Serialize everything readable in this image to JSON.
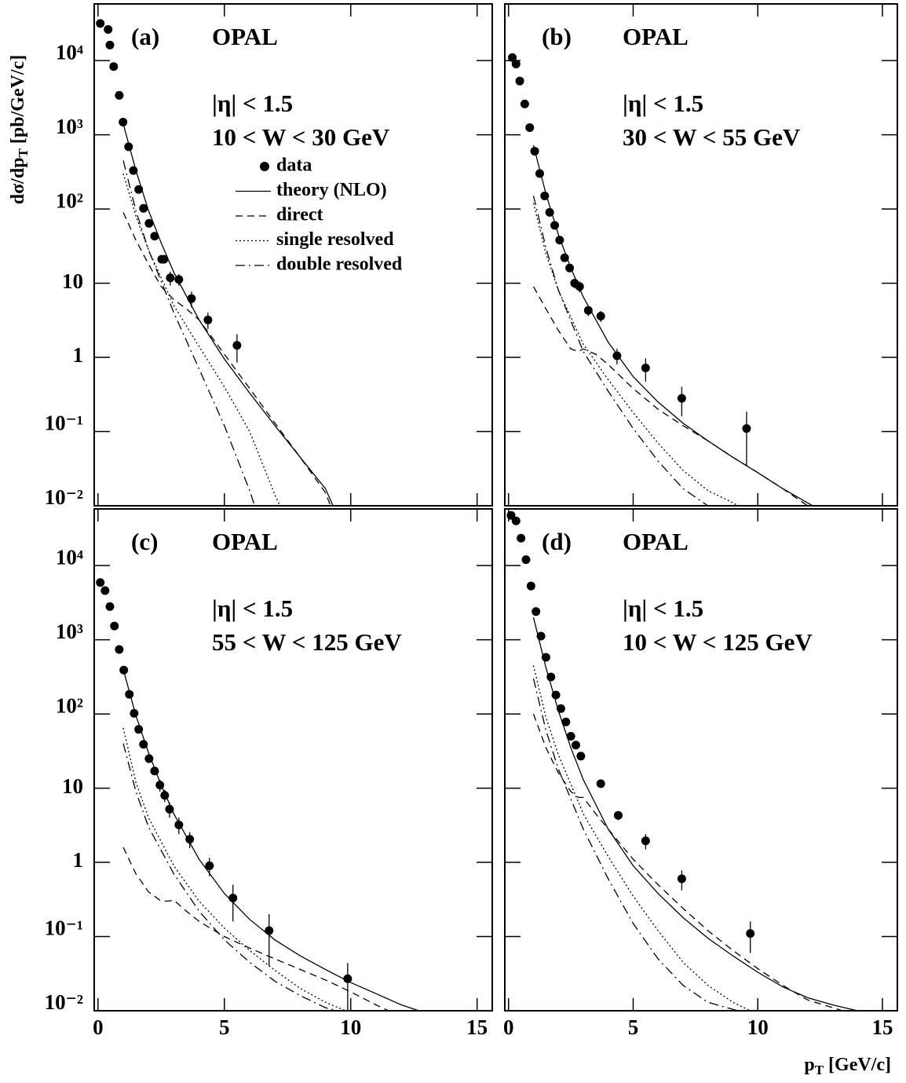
{
  "chart_data": [
    {
      "type": "line",
      "label": "(a)",
      "title": "OPAL",
      "annotations": [
        "|η| < 1.5",
        "10 < W < 30 GeV"
      ],
      "ylabel": [
        "dσ/dp",
        "T",
        "[pb/GeV/c]"
      ],
      "xlim": [
        -0.15,
        15.6
      ],
      "ylim": [
        0.01,
        58000
      ],
      "log_y": true,
      "xticks": [
        0,
        5,
        10,
        15
      ],
      "show_xtick_labels": false,
      "show_ytick_labels": true,
      "yticks": [
        {
          "value": 0.01,
          "label": "10⁻²"
        },
        {
          "value": 0.1,
          "label": "10⁻¹"
        },
        1,
        10,
        {
          "value": 100,
          "label": "10²"
        },
        {
          "value": 1000,
          "label": "10³"
        },
        {
          "value": 10000,
          "label": "10⁴"
        }
      ],
      "legend": true,
      "series": [
        {
          "name": "data",
          "style": "points",
          "color": "#000000",
          "x": [
            0.09,
            0.4,
            0.47,
            0.62,
            0.84,
            0.99,
            1.21,
            1.4,
            1.61,
            1.8,
            2.02,
            2.24,
            2.52,
            2.61,
            2.86,
            3.2,
            3.7,
            4.35,
            5.5
          ],
          "values": [
            31600,
            26300,
            16200,
            8300,
            3400,
            1480,
            690,
            330,
            183,
            102,
            64,
            43,
            21,
            21,
            11.8,
            11.2,
            6.2,
            3.2,
            1.45
          ],
          "errors": [
            0,
            0,
            0,
            0,
            0,
            0,
            0,
            0,
            0,
            0,
            0,
            0,
            2.5,
            2.5,
            2.5,
            2,
            1.5,
            0.8,
            0.6
          ]
        },
        {
          "name": "theory (NLO)",
          "style": "solid",
          "color": "#000000",
          "x": [
            1,
            1.5,
            2,
            2.5,
            3,
            4,
            5,
            6,
            7,
            8,
            9,
            9.3
          ],
          "values": [
            1400,
            330,
            95,
            35,
            14,
            3.2,
            0.95,
            0.33,
            0.12,
            0.045,
            0.017,
            0.01
          ]
        },
        {
          "name": "direct",
          "style": "dashed",
          "color": "#000000",
          "x": [
            1,
            1.5,
            2,
            2.5,
            3,
            3.5,
            4,
            5,
            6,
            7,
            8,
            9,
            9.2
          ],
          "values": [
            90,
            38,
            18,
            9,
            6,
            4.5,
            3.2,
            1.1,
            0.38,
            0.13,
            0.045,
            0.015,
            0.01
          ]
        },
        {
          "name": "single resolved",
          "style": "dotted",
          "color": "#000000",
          "x": [
            1,
            1.5,
            2,
            3,
            4,
            5,
            6,
            7,
            7.2
          ],
          "values": [
            300,
            80,
            28,
            5,
            1.4,
            0.4,
            0.1,
            0.014,
            0.01
          ]
        },
        {
          "name": "double resolved",
          "style": "dashdot",
          "color": "#000000",
          "x": [
            1,
            1.5,
            2,
            3,
            4,
            5,
            6,
            6.2
          ],
          "values": [
            450,
            95,
            28,
            4,
            0.7,
            0.12,
            0.016,
            0.01
          ]
        }
      ]
    },
    {
      "type": "line",
      "label": "(b)",
      "title": "OPAL",
      "annotations": [
        "|η| < 1.5",
        "30 < W < 55 GeV"
      ],
      "xlim": [
        -0.15,
        15.6
      ],
      "ylim": [
        0.01,
        58000
      ],
      "log_y": true,
      "xticks": [
        0,
        5,
        10,
        15
      ],
      "show_xtick_labels": false,
      "show_ytick_labels": false,
      "yticks": [
        0.01,
        0.1,
        1,
        10,
        100,
        1000,
        10000
      ],
      "series": [
        {
          "style": "points",
          "color": "#000000",
          "x": [
            0.15,
            0.3,
            0.45,
            0.65,
            0.85,
            1.05,
            1.25,
            1.45,
            1.65,
            1.85,
            2.05,
            2.25,
            2.45,
            2.65,
            2.85,
            3.2,
            3.7,
            4.35,
            5.5,
            6.95,
            9.55
          ],
          "values": [
            11000,
            9000,
            5300,
            2600,
            1250,
            600,
            300,
            150,
            90,
            60,
            38,
            22,
            16,
            10,
            9,
            4.3,
            3.6,
            1.05,
            0.72,
            0.28,
            0.11
          ],
          "errors": [
            0,
            0,
            0,
            0,
            0,
            0,
            0,
            0,
            0,
            0,
            0,
            0,
            2,
            1.5,
            1.5,
            0.7,
            0.6,
            0.25,
            0.25,
            0.12,
            0.075
          ]
        },
        {
          "style": "solid",
          "color": "#000000",
          "x": [
            1,
            1.5,
            2,
            2.5,
            3,
            4,
            5,
            6,
            7,
            8,
            9,
            10,
            11,
            12.2
          ],
          "values": [
            720,
            160,
            45,
            16,
            6.5,
            1.6,
            0.55,
            0.25,
            0.13,
            0.075,
            0.045,
            0.028,
            0.017,
            0.01
          ]
        },
        {
          "style": "dashed",
          "color": "#000000",
          "x": [
            1,
            1.5,
            2,
            2.5,
            2.8,
            3,
            3.5,
            4,
            5,
            6,
            7,
            8,
            9,
            10,
            11,
            12
          ],
          "values": [
            9,
            4.5,
            2.3,
            1.3,
            1.2,
            1.3,
            1.1,
            0.8,
            0.38,
            0.2,
            0.12,
            0.075,
            0.045,
            0.028,
            0.017,
            0.01
          ]
        },
        {
          "style": "dotted",
          "color": "#000000",
          "x": [
            1,
            1.5,
            2,
            3,
            4,
            5,
            6,
            7,
            8,
            9,
            9.2
          ],
          "values": [
            120,
            25,
            8,
            1.5,
            0.5,
            0.18,
            0.07,
            0.03,
            0.016,
            0.011,
            0.01
          ]
        },
        {
          "style": "dashdot",
          "color": "#000000",
          "x": [
            1,
            1.5,
            2,
            3,
            4,
            5,
            6,
            7,
            8
          ],
          "values": [
            150,
            30,
            8,
            1.2,
            0.35,
            0.11,
            0.04,
            0.017,
            0.01
          ]
        }
      ]
    },
    {
      "type": "line",
      "label": "(c)",
      "title": "OPAL",
      "annotations": [
        "|η| < 1.5",
        "55 < W < 125 GeV"
      ],
      "xlim": [
        -0.15,
        15.6
      ],
      "ylim": [
        0.01,
        58000
      ],
      "log_y": true,
      "xticks": [
        0,
        5,
        10,
        15
      ],
      "show_xtick_labels": true,
      "show_ytick_labels": true,
      "yticks": [
        {
          "value": 0.01,
          "label": "10⁻²"
        },
        {
          "value": 0.1,
          "label": "10⁻¹"
        },
        1,
        10,
        {
          "value": 100,
          "label": "10²"
        },
        {
          "value": 1000,
          "label": "10³"
        },
        {
          "value": 10000,
          "label": "10⁴"
        }
      ],
      "series": [
        {
          "style": "points",
          "color": "#000000",
          "x": [
            0.09,
            0.28,
            0.47,
            0.65,
            0.84,
            1.02,
            1.24,
            1.43,
            1.61,
            1.8,
            2.02,
            2.24,
            2.45,
            2.64,
            2.83,
            3.2,
            3.63,
            4.41,
            5.34,
            6.77,
            9.88
          ],
          "values": [
            5900,
            4600,
            2800,
            1530,
            740,
            390,
            184,
            102,
            62,
            39,
            25,
            17,
            11,
            8,
            5.2,
            3.2,
            2.05,
            0.9,
            0.33,
            0.12,
            0.027
          ],
          "errors": [
            0,
            0,
            0,
            0,
            0,
            50,
            20,
            10,
            6,
            4,
            3,
            2,
            2,
            1.5,
            1.2,
            0.8,
            0.5,
            0.25,
            0.17,
            0.08,
            0.017
          ]
        },
        {
          "style": "solid",
          "color": "#000000",
          "x": [
            1,
            1.5,
            2,
            2.5,
            3,
            4,
            5,
            6,
            7,
            8,
            9,
            10,
            11,
            12,
            12.7
          ],
          "values": [
            400,
            95,
            30,
            11,
            4.5,
            1.1,
            0.38,
            0.17,
            0.09,
            0.055,
            0.036,
            0.024,
            0.017,
            0.012,
            0.01
          ]
        },
        {
          "style": "dashed",
          "color": "#000000",
          "x": [
            1,
            1.5,
            2,
            2.5,
            2.8,
            3,
            3.5,
            4,
            5,
            6,
            7,
            8,
            9,
            10,
            11,
            11.5
          ],
          "values": [
            1.6,
            0.7,
            0.4,
            0.3,
            0.3,
            0.31,
            0.22,
            0.16,
            0.1,
            0.07,
            0.05,
            0.036,
            0.026,
            0.018,
            0.012,
            0.01
          ]
        },
        {
          "style": "dotted",
          "color": "#000000",
          "x": [
            1,
            1.5,
            2,
            3,
            4,
            5,
            6,
            7,
            8,
            9,
            9.8
          ],
          "values": [
            65,
            12,
            4,
            0.9,
            0.3,
            0.13,
            0.065,
            0.035,
            0.02,
            0.013,
            0.01
          ]
        },
        {
          "style": "dashdot",
          "color": "#000000",
          "x": [
            1,
            1.5,
            2,
            3,
            4,
            5,
            6,
            7,
            8,
            9,
            9.5
          ],
          "values": [
            40,
            9,
            3,
            0.7,
            0.22,
            0.09,
            0.045,
            0.025,
            0.016,
            0.011,
            0.01
          ]
        }
      ]
    },
    {
      "type": "line",
      "label": "(d)",
      "title": "OPAL",
      "annotations": [
        "|η| < 1.5",
        "10 < W < 125 GeV"
      ],
      "xlabel": [
        "p",
        "T",
        "[GeV/c]"
      ],
      "xlim": [
        -0.15,
        15.6
      ],
      "ylim": [
        0.01,
        58000
      ],
      "log_y": true,
      "xticks": [
        0,
        5,
        10,
        15
      ],
      "show_xtick_labels": true,
      "show_ytick_labels": false,
      "yticks": [
        0.01,
        0.1,
        1,
        10,
        100,
        1000,
        10000
      ],
      "series": [
        {
          "style": "points",
          "color": "#000000",
          "x": [
            0.1,
            0.3,
            0.5,
            0.7,
            0.9,
            1.1,
            1.3,
            1.5,
            1.7,
            1.9,
            2.1,
            2.3,
            2.5,
            2.7,
            2.9,
            3.7,
            4.4,
            5.5,
            6.95,
            9.7
          ],
          "values": [
            47500,
            40000,
            23400,
            12000,
            5300,
            2400,
            1120,
            580,
            315,
            180,
            118,
            78,
            50,
            38,
            27,
            11.5,
            4.3,
            1.95,
            0.6,
            0.11
          ],
          "errors": [
            0,
            0,
            0,
            0,
            0,
            0,
            0,
            0,
            0,
            0,
            0,
            0,
            0,
            0,
            0,
            1,
            0.6,
            0.45,
            0.18,
            0.05
          ]
        },
        {
          "style": "solid",
          "color": "#000000",
          "x": [
            1,
            1.5,
            2,
            2.5,
            3,
            4,
            5,
            6,
            7,
            8,
            9,
            10,
            11,
            12,
            13,
            14
          ],
          "values": [
            2000,
            420,
            110,
            35,
            13,
            2.8,
            0.9,
            0.38,
            0.18,
            0.095,
            0.055,
            0.033,
            0.021,
            0.015,
            0.012,
            0.01
          ]
        },
        {
          "style": "dashed",
          "color": "#000000",
          "x": [
            1,
            1.5,
            2,
            2.5,
            2.8,
            3,
            3.5,
            4,
            5,
            6,
            7,
            8,
            9,
            10,
            11,
            12,
            13.4
          ],
          "values": [
            100,
            35,
            16,
            9,
            7.5,
            7.5,
            4.5,
            2.8,
            1.1,
            0.5,
            0.24,
            0.12,
            0.065,
            0.037,
            0.022,
            0.014,
            0.01
          ]
        },
        {
          "style": "dotted",
          "color": "#000000",
          "x": [
            1,
            1.5,
            2,
            3,
            4,
            5,
            6,
            7,
            8,
            9,
            9.7
          ],
          "values": [
            450,
            90,
            28,
            4.5,
            1.2,
            0.35,
            0.12,
            0.045,
            0.022,
            0.013,
            0.01
          ]
        },
        {
          "style": "dashdot",
          "color": "#000000",
          "x": [
            1,
            1.5,
            2,
            3,
            4,
            5,
            6,
            7,
            8,
            9.2
          ],
          "values": [
            300,
            60,
            18,
            2.8,
            0.6,
            0.15,
            0.05,
            0.022,
            0.013,
            0.01
          ]
        }
      ]
    }
  ]
}
